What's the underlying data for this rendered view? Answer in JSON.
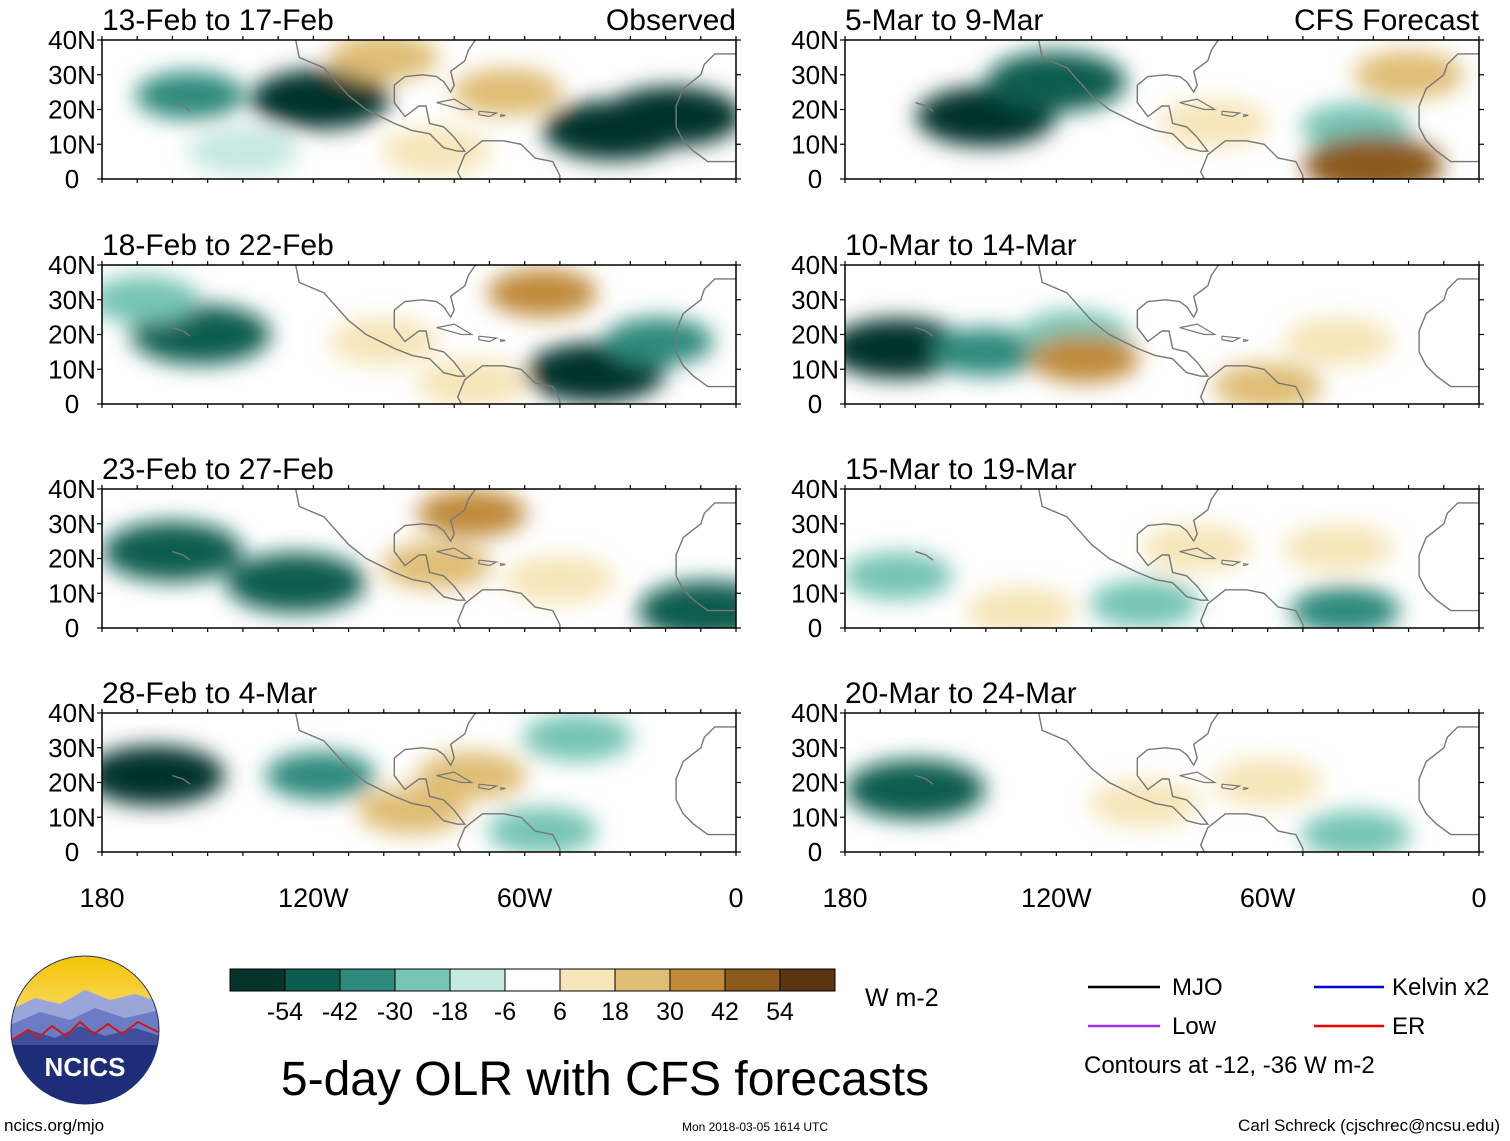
{
  "chart_data": {
    "type": "heatmap",
    "title": "5-day OLR with CFS forecasts",
    "units": "W m-2",
    "colorbar": {
      "ticks": [
        "-54",
        "-42",
        "-30",
        "-18",
        "-6",
        "6",
        "18",
        "30",
        "42",
        "54"
      ],
      "colors": [
        "#04332a",
        "#0b5d4f",
        "#2e8a7c",
        "#76c4b4",
        "#c5e8df",
        "#ffffff",
        "#f6e5b8",
        "#dfbd74",
        "#c08a3a",
        "#8c5a1c",
        "#5a3510"
      ]
    },
    "y_ticks": [
      "40N",
      "30N",
      "20N",
      "10N",
      "0"
    ],
    "x_ticks": [
      "180",
      "120W",
      "60W",
      "0"
    ],
    "lon_range": [
      -180,
      0
    ],
    "lat_range": [
      0,
      40
    ],
    "contour_note": "Contours at -12, -36 W m-2",
    "series": [
      {
        "name": "MJO",
        "color": "#000000"
      },
      {
        "name": "Kelvin x2",
        "color": "#0000dd"
      },
      {
        "name": "Low",
        "color": "#9933ee"
      },
      {
        "name": "ER",
        "color": "#ee0000"
      }
    ],
    "columns": [
      {
        "label": "Observed",
        "panels": [
          "13-Feb to 17-Feb",
          "18-Feb to 22-Feb",
          "23-Feb to 27-Feb",
          "28-Feb to 4-Mar"
        ]
      },
      {
        "label": "CFS Forecast",
        "panels": [
          "5-Mar to 9-Mar",
          "10-Mar to 14-Mar",
          "15-Mar to 19-Mar",
          "20-Mar to 24-Mar"
        ]
      }
    ],
    "anomalies": [
      [
        [
          {
            "lon": -155,
            "lat": 24,
            "v": -40
          },
          {
            "lon": -118,
            "lat": 23,
            "v": -54
          },
          {
            "lon": -35,
            "lat": 14,
            "v": -54
          },
          {
            "lon": -18,
            "lat": 18,
            "v": -54
          },
          {
            "lon": -65,
            "lat": 25,
            "v": 20
          },
          {
            "lon": -100,
            "lat": 35,
            "v": 22
          },
          {
            "lon": -140,
            "lat": 8,
            "v": -16
          },
          {
            "lon": -85,
            "lat": 8,
            "v": 12
          }
        ],
        [
          {
            "lon": -152,
            "lat": 20,
            "v": -52
          },
          {
            "lon": -168,
            "lat": 30,
            "v": -20
          },
          {
            "lon": -55,
            "lat": 32,
            "v": 40
          },
          {
            "lon": -40,
            "lat": 9,
            "v": -54
          },
          {
            "lon": -22,
            "lat": 18,
            "v": -30
          },
          {
            "lon": -100,
            "lat": 18,
            "v": 15
          },
          {
            "lon": -75,
            "lat": 6,
            "v": 12
          }
        ],
        [
          {
            "lon": -160,
            "lat": 22,
            "v": -50
          },
          {
            "lon": -125,
            "lat": 13,
            "v": -48
          },
          {
            "lon": -75,
            "lat": 33,
            "v": 35
          },
          {
            "lon": -85,
            "lat": 18,
            "v": 22
          },
          {
            "lon": -8,
            "lat": 5,
            "v": -45
          },
          {
            "lon": -50,
            "lat": 14,
            "v": 18
          }
        ],
        [
          {
            "lon": -165,
            "lat": 22,
            "v": -54
          },
          {
            "lon": -118,
            "lat": 22,
            "v": -35
          },
          {
            "lon": -45,
            "lat": 33,
            "v": -22
          },
          {
            "lon": -75,
            "lat": 22,
            "v": 28
          },
          {
            "lon": -92,
            "lat": 12,
            "v": 22
          },
          {
            "lon": -55,
            "lat": 6,
            "v": -24
          }
        ]
      ],
      [
        [
          {
            "lon": -140,
            "lat": 18,
            "v": -54
          },
          {
            "lon": -120,
            "lat": 28,
            "v": -48
          },
          {
            "lon": -35,
            "lat": 15,
            "v": -22
          },
          {
            "lon": -30,
            "lat": 4,
            "v": 48
          },
          {
            "lon": -20,
            "lat": 30,
            "v": 20
          },
          {
            "lon": -75,
            "lat": 16,
            "v": 15
          }
        ],
        [
          {
            "lon": -165,
            "lat": 16,
            "v": -54
          },
          {
            "lon": -140,
            "lat": 15,
            "v": -40
          },
          {
            "lon": -115,
            "lat": 20,
            "v": -22
          },
          {
            "lon": -112,
            "lat": 13,
            "v": 40
          },
          {
            "lon": -40,
            "lat": 18,
            "v": 18
          },
          {
            "lon": -60,
            "lat": 5,
            "v": 22
          }
        ],
        [
          {
            "lon": -165,
            "lat": 15,
            "v": -28
          },
          {
            "lon": -95,
            "lat": 7,
            "v": -22
          },
          {
            "lon": -38,
            "lat": 5,
            "v": -30
          },
          {
            "lon": -80,
            "lat": 23,
            "v": 15
          },
          {
            "lon": -40,
            "lat": 23,
            "v": 12
          },
          {
            "lon": -130,
            "lat": 5,
            "v": 12
          }
        ],
        [
          {
            "lon": -160,
            "lat": 18,
            "v": -42
          },
          {
            "lon": -35,
            "lat": 5,
            "v": -20
          },
          {
            "lon": -95,
            "lat": 14,
            "v": 10
          },
          {
            "lon": -60,
            "lat": 20,
            "v": 12
          }
        ]
      ]
    ]
  },
  "logo": {
    "name": "NCICS"
  },
  "footer": {
    "url": "ncics.org/mjo",
    "timestamp": "Mon 2018-03-05 1614 UTC",
    "credit": "Carl Schreck (cjschrec@ncsu.edu)"
  }
}
